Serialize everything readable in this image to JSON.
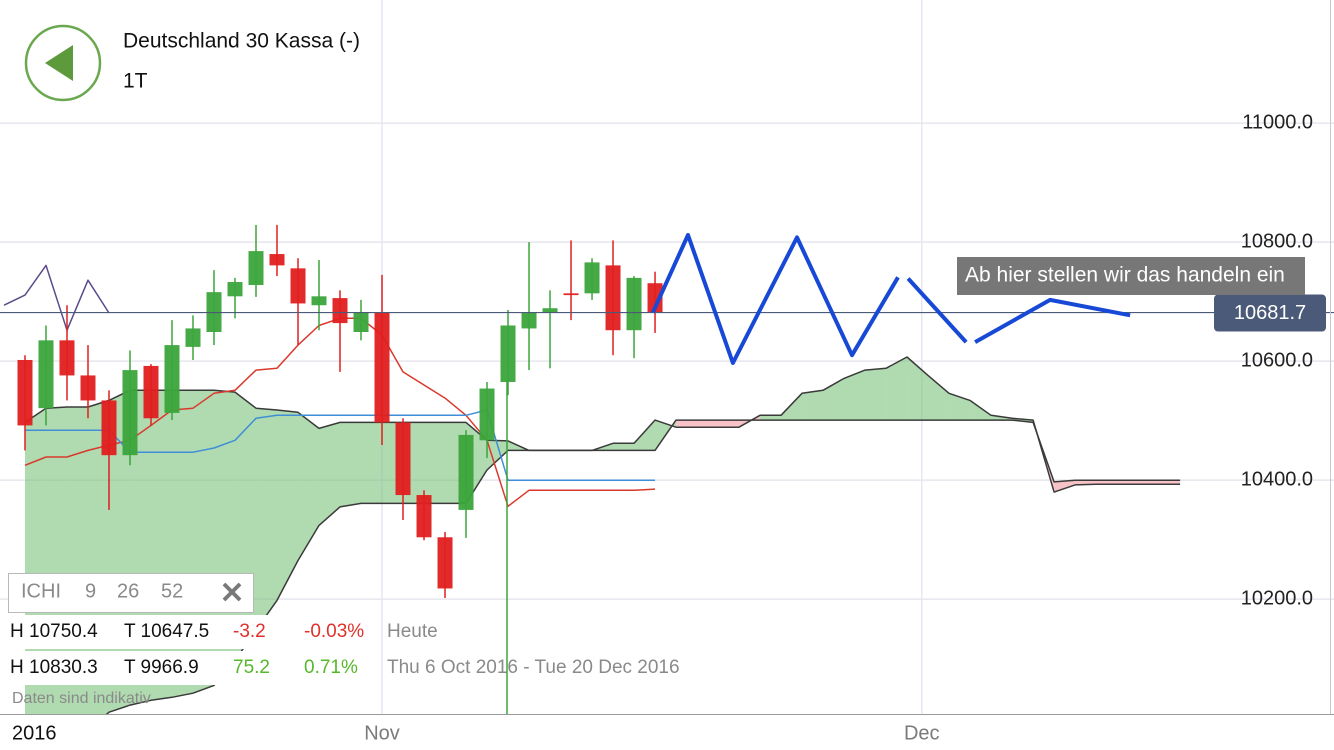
{
  "chart_data": {
    "type": "candlestick",
    "title": "Deutschland 30 Kassa (-)",
    "subtitle": "1T",
    "x": [
      0,
      1,
      2,
      3,
      4,
      5,
      6,
      7,
      8,
      9,
      10,
      11,
      12,
      13,
      14,
      15,
      16,
      17,
      18,
      19,
      20,
      21,
      22,
      23,
      24,
      25,
      26,
      27,
      28,
      29,
      30
    ],
    "open": [
      10602,
      10521,
      10635,
      10576,
      10534,
      10442,
      10592,
      10513,
      10624,
      10649,
      10709,
      10728,
      10780,
      10756,
      10694,
      10706,
      10649,
      10681,
      10497,
      10375,
      10304,
      10350,
      10467,
      10565,
      10655,
      10681,
      10714,
      10714,
      10761,
      10652,
      10731
    ],
    "high": [
      10610,
      10660,
      10694,
      10627,
      10551,
      10618,
      10595,
      10669,
      10677,
      10753,
      10740,
      10829,
      10829,
      10773,
      10770,
      10719,
      10703,
      10745,
      10504,
      10383,
      10313,
      10484,
      10565,
      10686,
      10800,
      10719,
      10803,
      10773,
      10803,
      10743,
      10750.4
    ],
    "low": [
      10450,
      10492,
      10534,
      10504,
      10350,
      10425,
      10492,
      10501,
      10602,
      10627,
      10672,
      10708,
      10743,
      10627,
      10652,
      10582,
      10635,
      10459,
      10333,
      10299,
      10202,
      10303,
      10437,
      10543,
      10585,
      10588,
      10669,
      10703,
      10610,
      10605,
      10647.5
    ],
    "close": [
      10492,
      10635,
      10576,
      10534,
      10442,
      10585,
      10504,
      10627,
      10655,
      10716,
      10733,
      10785,
      10761,
      10697,
      10709,
      10664,
      10681,
      10497,
      10375,
      10304,
      10218,
      10476,
      10554,
      10660,
      10681,
      10689,
      10711,
      10766,
      10652,
      10740,
      10682
    ],
    "up_color": "#3ba53b",
    "down_color": "#e01f1f",
    "lines": [
      {
        "color": "#d9392c",
        "values": [
          10425,
          10439,
          10439,
          10450,
          10459,
          10467,
          10492,
          10518,
          10521,
          10546,
          10551,
          10585,
          10588,
          10627,
          10660,
          10672,
          10672,
          10644,
          10582,
          10560,
          10538,
          10509,
          10467,
          10356,
          10383,
          10383,
          10383,
          10383,
          10383,
          10383,
          10385
        ]
      },
      {
        "color": "#3f8fd8",
        "values": [
          10484,
          10484,
          10484,
          10484,
          10484,
          10447,
          10447,
          10447,
          10447,
          10454,
          10467,
          10504,
          10509,
          10509,
          10509,
          10509,
          10509,
          10509,
          10509,
          10509,
          10509,
          10509,
          10518,
          10400,
          10400,
          10400,
          10400,
          10400,
          10400,
          10400,
          10400
        ]
      }
    ],
    "chikou": {
      "color": "#5b4b8c",
      "x": [
        -1,
        0,
        1,
        2,
        3,
        4
      ],
      "values": [
        10694,
        10711,
        10761,
        10652,
        10736,
        10681
      ]
    },
    "cloud": {
      "x": [
        0,
        1,
        2,
        3,
        4,
        5,
        6,
        7,
        8,
        9,
        10,
        11,
        12,
        13,
        14,
        15,
        16,
        17,
        18,
        19,
        20,
        21,
        22,
        23,
        24,
        25,
        26,
        27,
        28,
        29,
        30,
        31,
        32,
        33,
        34,
        35,
        36,
        37,
        38,
        39,
        40,
        41,
        42,
        43,
        44,
        45,
        46,
        47,
        48,
        49,
        50,
        51,
        52,
        53,
        54,
        55
      ],
      "span_a": [
        10497,
        10521,
        10523,
        10523,
        10534,
        10551,
        10551,
        10551,
        10551,
        10551,
        10548,
        10521,
        10518,
        10514,
        10487,
        10497,
        10497,
        10497,
        10497,
        10497,
        10497,
        10497,
        10467,
        10466,
        10450,
        10450,
        10450,
        10450,
        10462,
        10462,
        10501,
        10489,
        10489,
        10489,
        10489,
        10509,
        10509,
        10546,
        10551,
        10571,
        10585,
        10588,
        10607,
        10576,
        10546,
        10534,
        10509,
        10504,
        10501,
        10380,
        10392,
        10393,
        10393,
        10393,
        10393,
        10393
      ],
      "span_b": [
        9980,
        9980,
        9980,
        9980,
        10010,
        10022,
        10030,
        10035,
        10042,
        10055,
        10097,
        10148,
        10198,
        10265,
        10324,
        10355,
        10361,
        10361,
        10361,
        10361,
        10361,
        10361,
        10417,
        10450,
        10450,
        10450,
        10450,
        10450,
        10450,
        10450,
        10450,
        10501,
        10501,
        10501,
        10501,
        10501,
        10501,
        10501,
        10501,
        10501,
        10501,
        10501,
        10501,
        10501,
        10501,
        10501,
        10501,
        10501,
        10497,
        10397,
        10400,
        10400,
        10400,
        10400,
        10400,
        10400
      ],
      "up_color": "#7cc27c",
      "down_color": "#f29aa3",
      "line_color": "#3a3a3a"
    },
    "forecast": {
      "color": "#1749d6",
      "segments": [
        {
          "x": [
            29.9,
            31.57,
            33.71,
            36.76,
            39.38,
            41.57
          ],
          "values": [
            10682,
            10812,
            10597,
            10808,
            10610,
            10741
          ]
        },
        {
          "x": [
            42.05,
            44.81
          ],
          "values": [
            10739,
            10632
          ]
        },
        {
          "x": [
            45.24,
            48.81,
            52.62
          ],
          "values": [
            10632,
            10703,
            10677
          ]
        }
      ]
    },
    "last_price": 10681.7,
    "last_price_color": "#4b5a78",
    "annotation": "Ab hier stellen wir das handeln ein",
    "xlim": [
      -1.19,
      62.33
    ],
    "ylim": [
      10007,
      11207
    ],
    "yticks": [
      {
        "value": 10200,
        "label": "10200.0"
      },
      {
        "value": 10400,
        "label": "10400.0"
      },
      {
        "value": 10600,
        "label": "10600.0"
      },
      {
        "value": 10800,
        "label": "10800.0"
      },
      {
        "value": 11000,
        "label": "11000.0"
      }
    ],
    "xticks": [
      {
        "value": 17,
        "label": "Nov"
      },
      {
        "value": 42.7,
        "label": "Dec"
      }
    ],
    "year_label": "2016",
    "grid": true
  },
  "indicator": {
    "name": "ICHI",
    "params": [
      9,
      26,
      52
    ]
  },
  "stats": [
    [
      "H 10750.4",
      "T 10647.5",
      "-3.2",
      "-0.03%",
      "Heute"
    ],
    [
      "H 10830.3",
      "T 9966.9",
      "75.2",
      "0.71%",
      "Thu 6 Oct 2016 - Tue 20 Dec 2016"
    ]
  ],
  "disclaimer": "Daten sind indikativ"
}
